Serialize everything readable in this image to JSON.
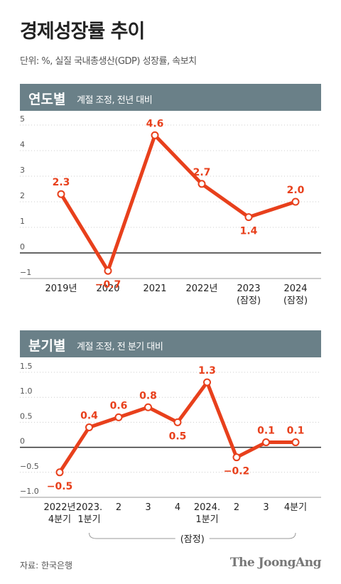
{
  "title": "경제성장률 추이",
  "unit_note": "단위: %, 실질 국내총생산(GDP) 성장률, 속보치",
  "source": "자료: 한국은행",
  "logo": "The JoongAng",
  "colors": {
    "line": "#e8401c",
    "band": "#6a8088",
    "axis": "#333333",
    "grid": "#cccccc"
  },
  "chart_data": [
    {
      "type": "line",
      "title": "연도별",
      "subtitle": "계절 조정, 전년 대비",
      "categories": [
        "2019년",
        "2020",
        "2021",
        "2022년",
        "2023\n(잠정)",
        "2024\n(잠정)"
      ],
      "values": [
        2.3,
        -0.7,
        4.6,
        2.7,
        1.4,
        2.0
      ],
      "labels": [
        "2.3",
        "−0.7",
        "4.6",
        "2.7",
        "1.4",
        "2.0"
      ],
      "yticks": [
        "5",
        "4",
        "3",
        "2",
        "1",
        "0",
        "−1"
      ],
      "ylim": [
        -1,
        5
      ]
    },
    {
      "type": "line",
      "title": "분기별",
      "subtitle": "계절 조정, 전 분기 대비",
      "categories": [
        "2022년\n4분기",
        "2023.\n1분기",
        "2",
        "3",
        "4",
        "2024.\n1분기",
        "2",
        "3",
        "4분기"
      ],
      "values": [
        -0.5,
        0.4,
        0.6,
        0.8,
        0.5,
        1.3,
        -0.2,
        0.1,
        0.1
      ],
      "labels": [
        "−0.5",
        "0.4",
        "0.6",
        "0.8",
        "0.5",
        "1.3",
        "−0.2",
        "0.1",
        "0.1"
      ],
      "yticks": [
        "1.5",
        "1.0",
        "0.5",
        "0",
        "−0.5",
        "−1.0"
      ],
      "ylim": [
        -1.0,
        1.5
      ],
      "bracket_label": "(잠정)"
    }
  ]
}
